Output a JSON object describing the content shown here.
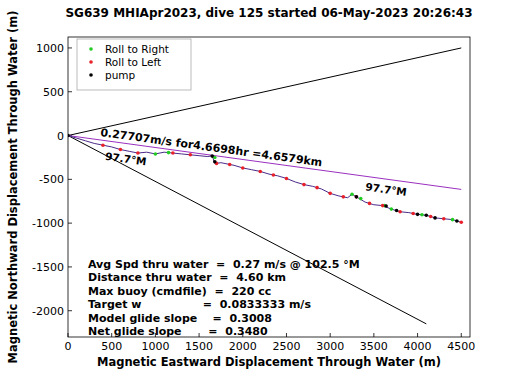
{
  "chart_data": {
    "type": "line",
    "title": "SG639 MHIApr2023, dive 125 started 06-May-2023 20:26:43",
    "x_label": "Magnetic Eastward Displacement Through Water (m)",
    "y_label": "Magnetic Northward Displacement Through Water (m)",
    "xlim": [
      0,
      4600
    ],
    "ylim": [
      -2300,
      1125
    ],
    "xticks": [
      0,
      500,
      1000,
      1500,
      2000,
      2500,
      3000,
      3500,
      4000,
      4500
    ],
    "yticks": [
      -2000,
      -1500,
      -1000,
      -500,
      0,
      500,
      1000
    ],
    "grid": false,
    "legend": "upper left",
    "series": [
      {
        "type": "line",
        "color": "#000000",
        "x": [
          0,
          4500
        ],
        "values": [
          0,
          1000
        ]
      },
      {
        "type": "line",
        "color": "#000000",
        "x": [
          0,
          4100
        ],
        "values": [
          0,
          -2150
        ]
      },
      {
        "type": "line",
        "color": "#9b30c0",
        "x": [
          0,
          4500
        ],
        "values": [
          0,
          -615
        ]
      },
      {
        "type": "line",
        "color": "#4b2a8a",
        "x": [
          0,
          100,
          200,
          300,
          400,
          500,
          600,
          700,
          800,
          900,
          1000,
          1100,
          1200,
          1300,
          1400,
          1500,
          1600,
          1650,
          1680,
          1750,
          1900,
          2000,
          2100,
          2200,
          2300,
          2400,
          2500,
          2600,
          2700,
          2800,
          2900,
          3000,
          3100,
          3200,
          3250,
          3300,
          3400,
          3500,
          3600,
          3700,
          3800,
          3900,
          4000,
          4100,
          4200,
          4300,
          4400,
          4500
        ],
        "values": [
          0,
          -30,
          -60,
          -90,
          -110,
          -130,
          -160,
          -180,
          -200,
          -190,
          -210,
          -190,
          -200,
          -210,
          -220,
          -230,
          -240,
          -230,
          -320,
          -310,
          -340,
          -370,
          -390,
          -410,
          -440,
          -460,
          -490,
          -530,
          -560,
          -580,
          -610,
          -660,
          -690,
          -710,
          -670,
          -700,
          -760,
          -790,
          -800,
          -840,
          -870,
          -880,
          -900,
          -910,
          -940,
          -950,
          -960,
          -990
        ]
      },
      {
        "type": "scatter",
        "name": "Roll to Right",
        "color": "#22cc22",
        "marker": "dot",
        "x": [
          1000,
          1150,
          1680,
          3250,
          3350,
          3620,
          3700,
          4050,
          4400
        ],
        "values": [
          -210,
          -195,
          -250,
          -670,
          -720,
          -800,
          -840,
          -905,
          -960
        ]
      },
      {
        "type": "scatter",
        "name": "Roll to Left",
        "color": "#e8202a",
        "marker": "dot",
        "x": [
          400,
          600,
          800,
          1200,
          1400,
          1700,
          1850,
          2000,
          2200,
          2350,
          2500,
          2700,
          2850,
          3000,
          3150,
          3300,
          3450,
          3600,
          3800,
          3950,
          4150,
          4300,
          4500
        ],
        "values": [
          -110,
          -160,
          -200,
          -200,
          -220,
          -318,
          -330,
          -370,
          -410,
          -450,
          -490,
          -560,
          -595,
          -660,
          -700,
          -700,
          -775,
          -800,
          -870,
          -890,
          -925,
          -950,
          -990
        ]
      },
      {
        "type": "scatter",
        "name": "pump",
        "color": "#000000",
        "marker": "dot",
        "x": [
          0,
          1650,
          1680,
          3300,
          3640,
          3760,
          4000,
          4100,
          4200,
          4450
        ],
        "values": [
          0,
          -235,
          -300,
          -700,
          -805,
          -855,
          -900,
          -910,
          -940,
          -975
        ]
      }
    ],
    "annotations": [
      "0.27707m/s for4.6698hr =4.6579km",
      "97.7°M",
      "97.7°M"
    ],
    "stats": [
      "Avg Spd thru water  =  0.27 m/s @ 102.5 °M",
      "Distance thru water  =  4.60 km",
      "Max buoy (cmdfile)  =  220 cc",
      "Target w                =  0.0833333 m/s",
      "Model glide slope    =  0.3008",
      "Net glide slope       =  0.3480"
    ]
  }
}
